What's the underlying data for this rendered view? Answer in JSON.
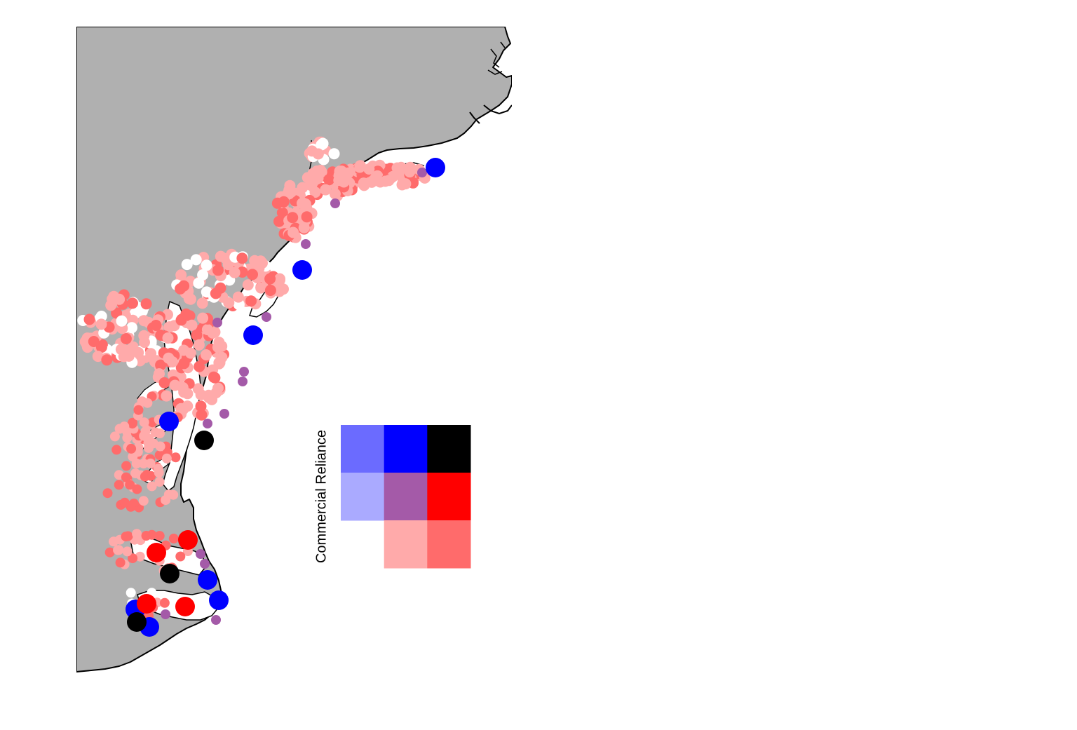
{
  "legend": {
    "title": "Commercial Reliance",
    "grid_rows": [
      [
        "#6b6bff",
        "#0000ff",
        "#000000"
      ],
      [
        "#aaaaff",
        "#a45aa8",
        "#ff0000"
      ],
      [
        null,
        "#ffaaaa",
        "#ff6b6b"
      ]
    ]
  },
  "colors": {
    "land": "#b0b0b0",
    "water": "#ffffff",
    "coastline": "#000000",
    "light_pink": "#ffaaaa",
    "salmon": "#ff6b6b",
    "purple": "#a45aa8",
    "blue": "#0000ff",
    "red": "#ff0000",
    "black": "#000000",
    "white": "#ffffff"
  }
}
